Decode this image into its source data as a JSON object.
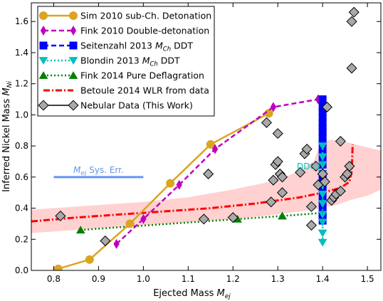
{
  "chart_data": {
    "type": "scatter",
    "xlabel": "Ejected Mass",
    "xlabel_sub": "ej",
    "ylabel": "Inferred Nickel Mass",
    "ylabel_sub": "Ni",
    "xlim": [
      0.75,
      1.53
    ],
    "ylim": [
      0.0,
      1.72
    ],
    "xticks": [
      0.8,
      0.9,
      1.0,
      1.1,
      1.2,
      1.3,
      1.4,
      1.5
    ],
    "xtick_labels": [
      "0.8",
      "0.9",
      "1.0",
      "1.1",
      "1.2",
      "1.3",
      "1.4",
      "1.5"
    ],
    "yticks": [
      0.0,
      0.2,
      0.4,
      0.6,
      0.8,
      1.0,
      1.2,
      1.4,
      1.6
    ],
    "ytick_labels": [
      "0.0",
      "0.2",
      "0.4",
      "0.6",
      "0.8",
      "1.0",
      "1.2",
      "1.4",
      "1.6"
    ],
    "grid": false,
    "legend_position": "top-left",
    "series": [
      {
        "name": "Sim 2010 sub-Ch. Detonation",
        "color": "#daa520",
        "marker": "circle",
        "line": "solid",
        "points": [
          [
            0.81,
            0.01
          ],
          [
            0.88,
            0.07
          ],
          [
            0.97,
            0.3
          ],
          [
            1.06,
            0.56
          ],
          [
            1.15,
            0.81
          ],
          [
            1.28,
            1.01
          ]
        ]
      },
      {
        "name": "Fink 2010 Double-detonation",
        "color": "#bf00bf",
        "marker": "thin-diamond",
        "line": "dashed",
        "points": [
          [
            0.94,
            0.17
          ],
          [
            1.0,
            0.33
          ],
          [
            1.08,
            0.55
          ],
          [
            1.16,
            0.78
          ],
          [
            1.29,
            1.05
          ],
          [
            1.39,
            1.1
          ]
        ]
      },
      {
        "name": "Seitenzahl 2013",
        "name_math": "M",
        "name_sub": "Ch",
        "name_suffix": "DDT",
        "color": "#0000ff",
        "marker": "square",
        "line": "dashed",
        "points": [
          [
            1.4,
            0.32
          ],
          [
            1.4,
            0.35
          ],
          [
            1.4,
            0.38
          ],
          [
            1.4,
            0.43
          ],
          [
            1.4,
            0.47
          ],
          [
            1.4,
            0.52
          ],
          [
            1.4,
            0.56
          ],
          [
            1.4,
            0.59
          ],
          [
            1.4,
            0.62
          ],
          [
            1.4,
            0.68
          ],
          [
            1.4,
            0.73
          ],
          [
            1.4,
            0.77
          ],
          [
            1.4,
            0.82
          ],
          [
            1.4,
            0.86
          ],
          [
            1.4,
            0.89
          ],
          [
            1.4,
            0.92
          ],
          [
            1.4,
            0.95
          ],
          [
            1.4,
            0.98
          ],
          [
            1.4,
            1.02
          ],
          [
            1.4,
            1.05
          ],
          [
            1.4,
            1.1
          ]
        ]
      },
      {
        "name": "Blondin 2013",
        "name_math": "M",
        "name_sub": "Ch",
        "name_suffix": "DDT",
        "color": "#00bfbf",
        "marker": "triangle-down",
        "line": "dotted",
        "points": [
          [
            1.4,
            0.18
          ],
          [
            1.4,
            0.24
          ],
          [
            1.4,
            0.31
          ],
          [
            1.4,
            0.36
          ],
          [
            1.4,
            0.43
          ],
          [
            1.4,
            0.49
          ],
          [
            1.4,
            0.55
          ],
          [
            1.4,
            0.62
          ],
          [
            1.4,
            0.68
          ],
          [
            1.4,
            0.73
          ],
          [
            1.4,
            0.8
          ]
        ]
      },
      {
        "name": "Fink 2014 Pure Deflagration",
        "color": "#008000",
        "marker": "triangle-up",
        "line": "dotted",
        "points": [
          [
            0.86,
            0.26
          ],
          [
            1.21,
            0.33
          ],
          [
            1.31,
            0.35
          ],
          [
            1.4,
            0.37
          ]
        ]
      },
      {
        "name": "Betoule 2014 WLR from data",
        "color": "#ff0000",
        "marker": "none",
        "line": "dashdot",
        "band_color": "#ffcccc",
        "points": [
          [
            0.75,
            0.315
          ],
          [
            0.85,
            0.34
          ],
          [
            0.95,
            0.36
          ],
          [
            1.05,
            0.38
          ],
          [
            1.15,
            0.4
          ],
          [
            1.25,
            0.43
          ],
          [
            1.35,
            0.47
          ],
          [
            1.4,
            0.5
          ],
          [
            1.44,
            0.53
          ],
          [
            1.46,
            0.57
          ],
          [
            1.465,
            0.64
          ],
          [
            1.466,
            0.72
          ],
          [
            1.467,
            0.81
          ]
        ],
        "band_lower": [
          [
            0.75,
            0.24
          ],
          [
            0.9,
            0.27
          ],
          [
            1.0,
            0.29
          ],
          [
            1.1,
            0.31
          ],
          [
            1.2,
            0.33
          ],
          [
            1.3,
            0.36
          ],
          [
            1.38,
            0.39
          ],
          [
            1.43,
            0.42
          ],
          [
            1.46,
            0.45
          ],
          [
            1.5,
            0.48
          ],
          [
            1.53,
            0.52
          ]
        ],
        "band_upper": [
          [
            1.53,
            0.77
          ],
          [
            1.5,
            0.79
          ],
          [
            1.46,
            0.82
          ],
          [
            1.42,
            0.84
          ],
          [
            1.4,
            0.83
          ],
          [
            1.39,
            0.78
          ],
          [
            1.38,
            0.7
          ],
          [
            1.34,
            0.63
          ],
          [
            1.3,
            0.58
          ],
          [
            1.2,
            0.52
          ],
          [
            1.1,
            0.47
          ],
          [
            1.0,
            0.44
          ],
          [
            0.9,
            0.42
          ],
          [
            0.8,
            0.4
          ],
          [
            0.75,
            0.39
          ]
        ]
      },
      {
        "name": "Nebular Data (This Work)",
        "color": "#a9a9a9",
        "marker": "diamond",
        "line": "none",
        "points": [
          [
            0.815,
            0.35
          ],
          [
            0.915,
            0.19
          ],
          [
            1.135,
            0.33
          ],
          [
            1.145,
            0.62
          ],
          [
            1.2,
            0.34
          ],
          [
            1.275,
            0.95
          ],
          [
            1.285,
            0.44
          ],
          [
            1.29,
            0.58
          ],
          [
            1.295,
            0.68
          ],
          [
            1.3,
            0.88
          ],
          [
            1.3,
            0.7
          ],
          [
            1.305,
            0.62
          ],
          [
            1.31,
            0.6
          ],
          [
            1.31,
            0.5
          ],
          [
            1.35,
            0.63
          ],
          [
            1.36,
            0.75
          ],
          [
            1.365,
            0.78
          ],
          [
            1.375,
            0.41
          ],
          [
            1.375,
            0.29
          ],
          [
            1.385,
            0.67
          ],
          [
            1.39,
            0.55
          ],
          [
            1.4,
            0.62
          ],
          [
            1.405,
            0.57
          ],
          [
            1.41,
            1.05
          ],
          [
            1.42,
            0.45
          ],
          [
            1.425,
            0.47
          ],
          [
            1.43,
            0.49
          ],
          [
            1.44,
            0.83
          ],
          [
            1.44,
            0.51
          ],
          [
            1.45,
            0.6
          ],
          [
            1.455,
            0.62
          ],
          [
            1.46,
            0.67
          ],
          [
            1.465,
            1.3
          ],
          [
            1.465,
            1.6
          ],
          [
            1.47,
            1.66
          ]
        ]
      }
    ],
    "annotations": [
      {
        "text": "DDC1",
        "color": "#00bfbf",
        "x": 1.37,
        "y": 0.65
      },
      {
        "label_math": "M",
        "label_sub": "ej",
        "label_suffix": "Sys. Err.",
        "color": "#6495ed",
        "segment": [
          [
            0.8,
            0.6
          ],
          [
            1.0,
            0.6
          ]
        ]
      }
    ]
  }
}
